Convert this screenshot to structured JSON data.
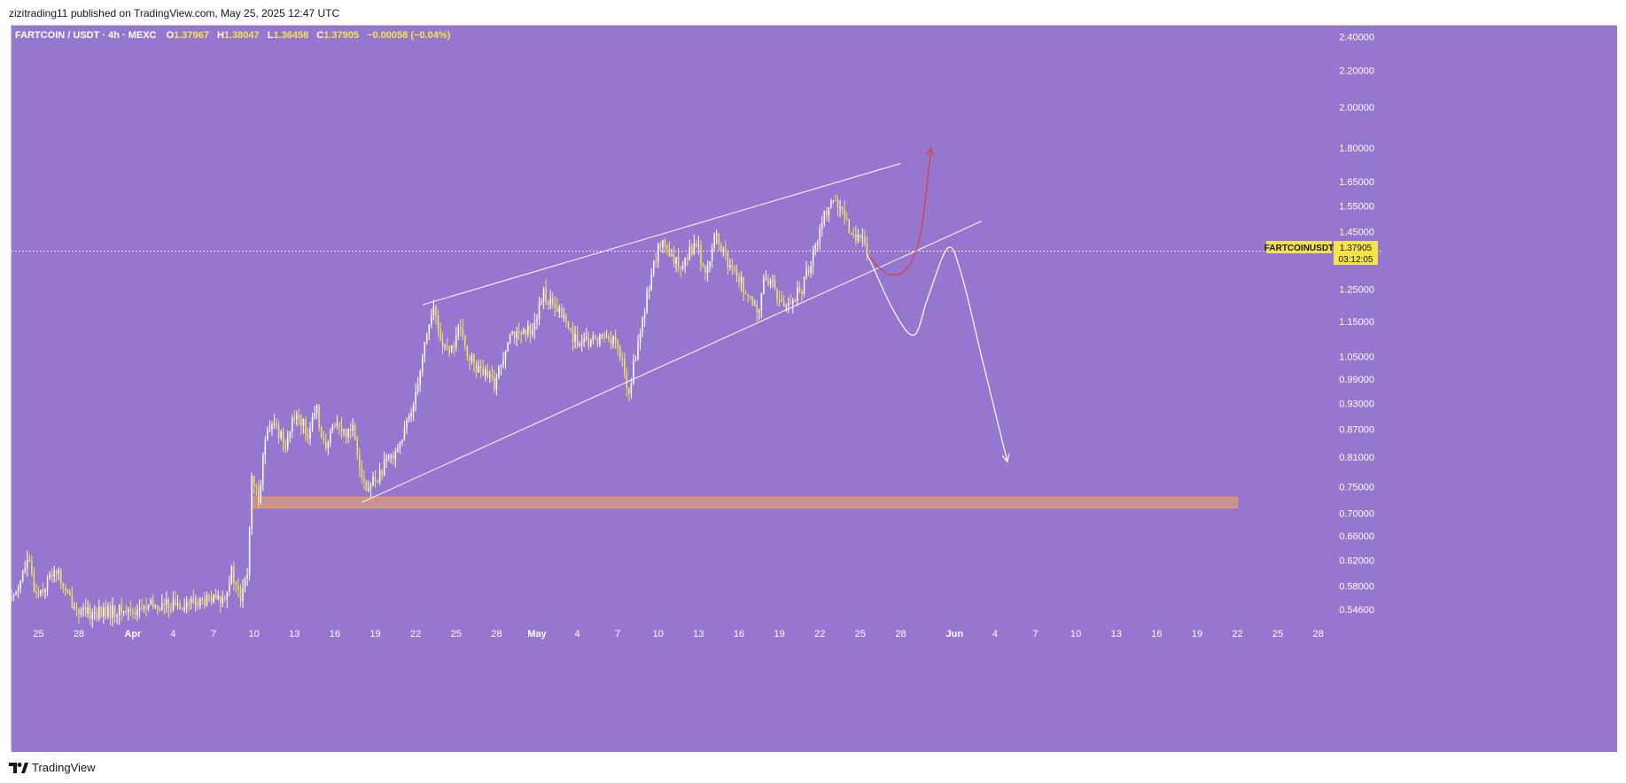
{
  "header": {
    "published_by": "zizitrading11 published on TradingView.com, May 25, 2025 12:47 UTC"
  },
  "legend": {
    "symbol_line": "FARTCOIN / USDT · 4h · MEXC",
    "o_label": "O",
    "o_value": "1.37967",
    "h_label": "H",
    "h_value": "1.38047",
    "l_label": "L",
    "l_value": "1.36458",
    "c_label": "C",
    "c_value": "1.37905",
    "change": "−0.00058 (−0.04%)"
  },
  "price_tag": {
    "symbol": "FARTCOINUSDT",
    "price": "1.37905",
    "countdown": "03:12:05"
  },
  "footer": {
    "brand": "TradingView"
  },
  "colors": {
    "background": "#9677cf",
    "candle_up": "#ffffff",
    "candle_down": "#f3e25a",
    "legend_value": "#f7e24a",
    "zone_fill": "#d99a7c",
    "zone_border": "#f0a050",
    "bull_path": "#e23a3a",
    "bear_path": "#ffffff",
    "price_tag_bg": "#f7e24a"
  },
  "chart_data": {
    "type": "candlestick",
    "symbol": "FARTCOIN / USDT",
    "timeframe": "4h",
    "exchange": "MEXC",
    "y_scale": "log",
    "ylim": [
      0.53,
      2.47
    ],
    "x_range": [
      "2025-03-23",
      "2025-06-29"
    ],
    "y_ticks": [
      "2.40000",
      "2.20000",
      "2.00000",
      "1.80000",
      "1.65000",
      "1.55000",
      "1.45000",
      "1.25000",
      "1.15000",
      "1.05000",
      "0.99000",
      "0.93000",
      "0.87000",
      "0.81000",
      "0.75000",
      "0.70000",
      "0.66000",
      "0.62000",
      "0.58000",
      "0.54600"
    ],
    "x_ticks": [
      {
        "label": "25",
        "date": "2025-03-25"
      },
      {
        "label": "28",
        "date": "2025-03-28"
      },
      {
        "label": "Apr",
        "date": "2025-04-01"
      },
      {
        "label": "4",
        "date": "2025-04-04"
      },
      {
        "label": "7",
        "date": "2025-04-07"
      },
      {
        "label": "10",
        "date": "2025-04-10"
      },
      {
        "label": "13",
        "date": "2025-04-13"
      },
      {
        "label": "16",
        "date": "2025-04-16"
      },
      {
        "label": "19",
        "date": "2025-04-19"
      },
      {
        "label": "22",
        "date": "2025-04-22"
      },
      {
        "label": "25",
        "date": "2025-04-25"
      },
      {
        "label": "28",
        "date": "2025-04-28"
      },
      {
        "label": "May",
        "date": "2025-05-01"
      },
      {
        "label": "4",
        "date": "2025-05-04"
      },
      {
        "label": "7",
        "date": "2025-05-07"
      },
      {
        "label": "10",
        "date": "2025-05-10"
      },
      {
        "label": "13",
        "date": "2025-05-13"
      },
      {
        "label": "16",
        "date": "2025-05-16"
      },
      {
        "label": "19",
        "date": "2025-05-19"
      },
      {
        "label": "22",
        "date": "2025-05-22"
      },
      {
        "label": "25",
        "date": "2025-05-25"
      },
      {
        "label": "28",
        "date": "2025-05-28"
      },
      {
        "label": "Jun",
        "date": "2025-06-01"
      },
      {
        "label": "4",
        "date": "2025-06-04"
      },
      {
        "label": "7",
        "date": "2025-06-07"
      },
      {
        "label": "10",
        "date": "2025-06-10"
      },
      {
        "label": "13",
        "date": "2025-06-13"
      },
      {
        "label": "16",
        "date": "2025-06-16"
      },
      {
        "label": "19",
        "date": "2025-06-19"
      },
      {
        "label": "22",
        "date": "2025-06-22"
      },
      {
        "label": "25",
        "date": "2025-06-25"
      },
      {
        "label": "28",
        "date": "2025-06-28"
      }
    ],
    "price_path": [
      [
        "2025-03-23T00:00",
        0.56
      ],
      [
        "2025-03-24T06:00",
        0.62
      ],
      [
        "2025-03-24T18:00",
        0.57
      ],
      [
        "2025-03-25T12:00",
        0.58
      ],
      [
        "2025-03-26T06:00",
        0.61
      ],
      [
        "2025-03-27T00:00",
        0.57
      ],
      [
        "2025-03-27T18:00",
        0.55
      ],
      [
        "2025-03-28T06:00",
        0.54
      ],
      [
        "2025-04-01T08:00",
        0.545
      ],
      [
        "2025-04-02T08:00",
        0.55
      ],
      [
        "2025-04-07T16:00",
        0.56
      ],
      [
        "2025-04-08T08:00",
        0.6
      ],
      [
        "2025-04-09T00:00",
        0.56
      ],
      [
        "2025-04-09T12:00",
        0.6
      ],
      [
        "2025-04-09T20:00",
        0.76
      ],
      [
        "2025-04-10T08:00",
        0.73
      ],
      [
        "2025-04-10T20:00",
        0.85
      ],
      [
        "2025-04-11T12:00",
        0.88
      ],
      [
        "2025-04-12T08:00",
        0.84
      ],
      [
        "2025-04-13T04:00",
        0.91
      ],
      [
        "2025-04-14T00:00",
        0.86
      ],
      [
        "2025-04-14T16:00",
        0.91
      ],
      [
        "2025-04-15T08:00",
        0.82
      ],
      [
        "2025-04-16T00:00",
        0.89
      ],
      [
        "2025-04-16T16:00",
        0.86
      ],
      [
        "2025-04-17T08:00",
        0.88
      ],
      [
        "2025-04-17T20:00",
        0.8
      ],
      [
        "2025-04-18T08:00",
        0.74
      ],
      [
        "2025-04-18T20:00",
        0.76
      ],
      [
        "2025-04-19T12:00",
        0.78
      ],
      [
        "2025-04-20T08:00",
        0.82
      ],
      [
        "2025-04-21T00:00",
        0.85
      ],
      [
        "2025-04-21T16:00",
        0.91
      ],
      [
        "2025-04-22T08:00",
        1.02
      ],
      [
        "2025-04-22T20:00",
        1.12
      ],
      [
        "2025-04-23T08:00",
        1.19
      ],
      [
        "2025-04-23T20:00",
        1.1
      ],
      [
        "2025-04-24T12:00",
        1.05
      ],
      [
        "2025-04-25T04:00",
        1.13
      ],
      [
        "2025-04-25T20:00",
        1.06
      ],
      [
        "2025-04-26T12:00",
        1.02
      ],
      [
        "2025-04-27T04:00",
        1.0
      ],
      [
        "2025-04-27T20:00",
        0.98
      ],
      [
        "2025-04-28T08:00",
        1.03
      ],
      [
        "2025-04-29T00:00",
        1.13
      ],
      [
        "2025-04-29T16:00",
        1.1
      ],
      [
        "2025-04-30T08:00",
        1.12
      ],
      [
        "2025-05-01T00:00",
        1.16
      ],
      [
        "2025-05-01T12:00",
        1.24
      ],
      [
        "2025-05-02T04:00",
        1.19
      ],
      [
        "2025-05-02T20:00",
        1.17
      ],
      [
        "2025-05-03T12:00",
        1.12
      ],
      [
        "2025-05-04T04:00",
        1.08
      ],
      [
        "2025-05-04T20:00",
        1.09
      ],
      [
        "2025-05-05T12:00",
        1.1
      ],
      [
        "2025-05-06T04:00",
        1.11
      ],
      [
        "2025-05-06T20:00",
        1.09
      ],
      [
        "2025-05-07T08:00",
        1.03
      ],
      [
        "2025-05-07T20:00",
        0.95
      ],
      [
        "2025-05-08T08:00",
        1.06
      ],
      [
        "2025-05-08T20:00",
        1.14
      ],
      [
        "2025-05-09T08:00",
        1.27
      ],
      [
        "2025-05-09T20:00",
        1.36
      ],
      [
        "2025-05-10T08:00",
        1.42
      ],
      [
        "2025-05-10T20:00",
        1.35
      ],
      [
        "2025-05-11T12:00",
        1.33
      ],
      [
        "2025-05-12T04:00",
        1.37
      ],
      [
        "2025-05-12T20:00",
        1.41
      ],
      [
        "2025-05-13T12:00",
        1.3
      ],
      [
        "2025-05-14T04:00",
        1.43
      ],
      [
        "2025-05-14T20:00",
        1.38
      ],
      [
        "2025-05-15T08:00",
        1.31
      ],
      [
        "2025-05-16T00:00",
        1.29
      ],
      [
        "2025-05-16T16:00",
        1.22
      ],
      [
        "2025-05-17T08:00",
        1.17
      ],
      [
        "2025-05-18T00:00",
        1.3
      ],
      [
        "2025-05-18T16:00",
        1.25
      ],
      [
        "2025-05-19T08:00",
        1.19
      ],
      [
        "2025-05-20T00:00",
        1.22
      ],
      [
        "2025-05-20T16:00",
        1.25
      ],
      [
        "2025-05-21T08:00",
        1.35
      ],
      [
        "2025-05-21T20:00",
        1.42
      ],
      [
        "2025-05-22T08:00",
        1.52
      ],
      [
        "2025-05-22T20:00",
        1.58
      ],
      [
        "2025-05-23T04:00",
        1.56
      ],
      [
        "2025-05-23T12:00",
        1.54
      ],
      [
        "2025-05-23T20:00",
        1.48
      ],
      [
        "2025-05-24T08:00",
        1.45
      ],
      [
        "2025-05-24T20:00",
        1.44
      ],
      [
        "2025-05-25T12:00",
        1.379
      ]
    ],
    "last_price": 1.37905,
    "drawings": {
      "channel_upper": [
        [
          "2025-04-22T12:00",
          1.2
        ],
        [
          "2025-05-28T00:00",
          1.73
        ]
      ],
      "channel_lower": [
        [
          "2025-04-18T00:00",
          0.72
        ],
        [
          "2025-06-03T00:00",
          1.49
        ]
      ],
      "demand_zone": {
        "from": "2025-04-09T20:00",
        "to": "2025-06-22T00:00",
        "low": 0.71,
        "high": 0.73
      },
      "bullish_path": [
        [
          "2025-05-25T12:00",
          1.37
        ],
        [
          "2025-05-27T00:00",
          1.3
        ],
        [
          "2025-05-28T12:00",
          1.32
        ],
        [
          "2025-05-29T12:00",
          1.45
        ],
        [
          "2025-05-30T06:00",
          1.8
        ]
      ],
      "bearish_path": [
        [
          "2025-05-25T12:00",
          1.37
        ],
        [
          "2025-05-27T12:00",
          1.18
        ],
        [
          "2025-05-29T00:00",
          1.11
        ],
        [
          "2025-05-30T00:00",
          1.22
        ],
        [
          "2025-05-31T12:00",
          1.39
        ],
        [
          "2025-06-01T12:00",
          1.3
        ],
        [
          "2025-06-03T00:00",
          1.05
        ],
        [
          "2025-06-04T22:00",
          0.8
        ]
      ]
    }
  }
}
